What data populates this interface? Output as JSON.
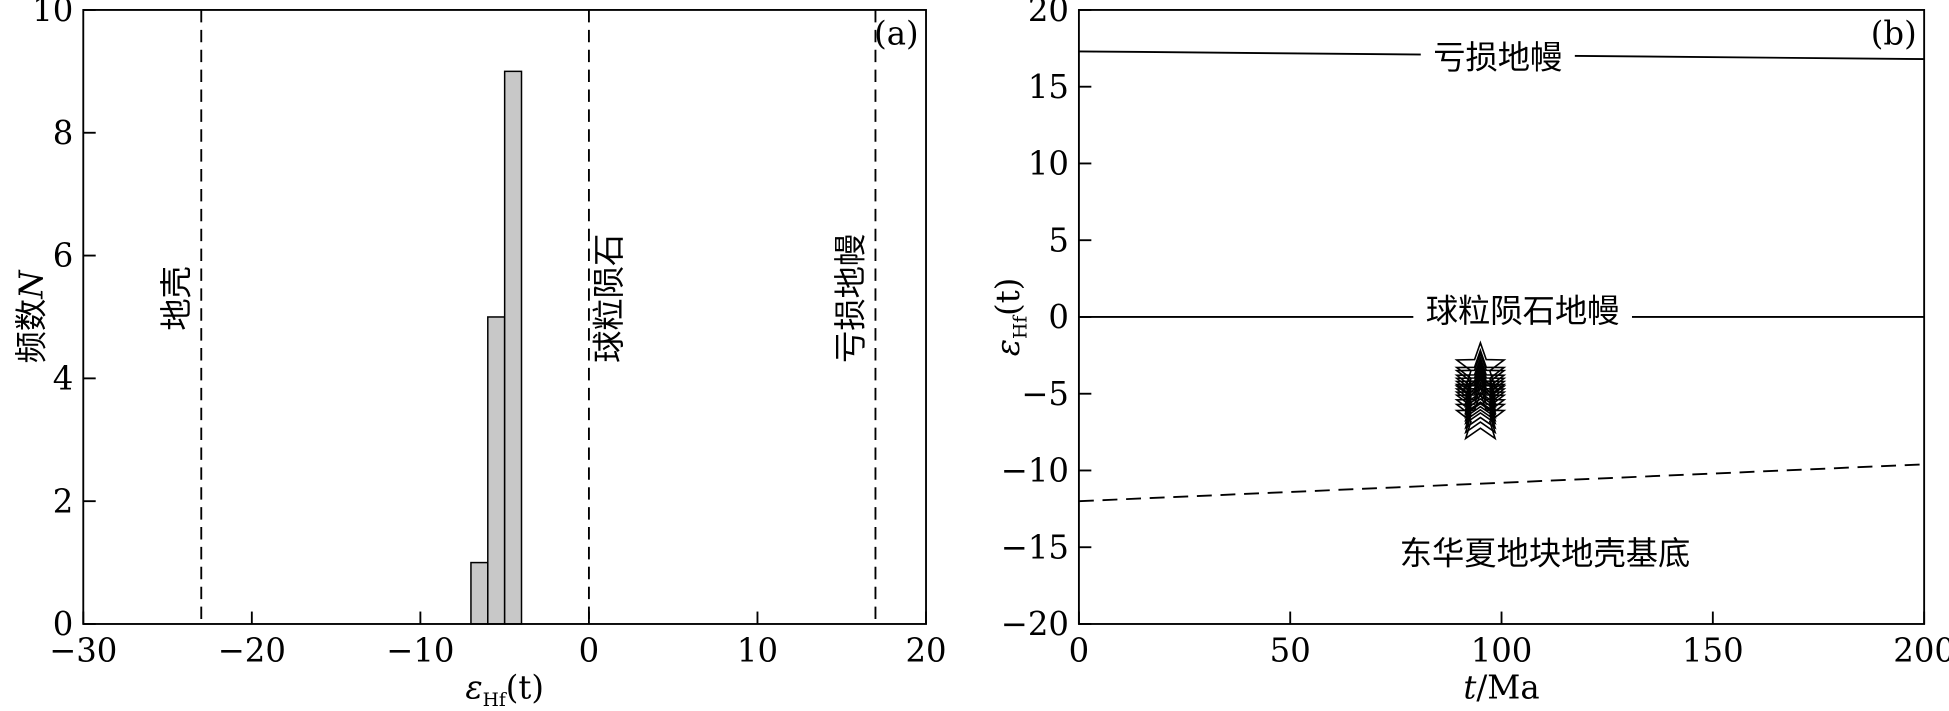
{
  "chart_data": [
    {
      "type": "histogram",
      "panel_label": "(a)",
      "xlabel": {
        "symbol": "ε",
        "subscript": "Hf",
        "arg": "(t)"
      },
      "ylabel": {
        "text": "频数",
        "var": "N"
      },
      "bins": [
        -7,
        -6,
        -5,
        -4
      ],
      "values": [
        1,
        5,
        9
      ],
      "color": "#c8c8c8",
      "xlim": [
        -30,
        20
      ],
      "xticks": [
        {
          "value": -30,
          "label": "−30"
        },
        {
          "value": -20,
          "label": "−20"
        },
        {
          "value": -10,
          "label": "−10"
        },
        0,
        10,
        20
      ],
      "ylim": [
        0,
        10
      ],
      "yticks": [
        0,
        2,
        4,
        6,
        8,
        10
      ],
      "vlines": [
        {
          "x": -23,
          "label": "地壳"
        },
        {
          "x": 0,
          "label": "球粒陨石"
        },
        {
          "x": 17,
          "label": "亏损地幔"
        }
      ]
    },
    {
      "type": "scatter",
      "panel_label": "(b)",
      "xlabel": {
        "var": "t",
        "unit": "/Ma"
      },
      "ylabel": {
        "symbol": "ε",
        "subscript": "Hf",
        "arg": "(t)"
      },
      "xlim": [
        0,
        200
      ],
      "xticks": [
        0,
        50,
        100,
        150,
        200
      ],
      "ylim": [
        -20,
        20
      ],
      "yticks": [
        {
          "value": -20,
          "label": "−20"
        },
        {
          "value": -15,
          "label": "−15"
        },
        {
          "value": -10,
          "label": "−10"
        },
        {
          "value": -5,
          "label": "−5"
        },
        0,
        5,
        10,
        15,
        20
      ],
      "lines": [
        {
          "name": "亏损地幔",
          "x": [
            0,
            200
          ],
          "values": [
            17.3,
            16.8
          ],
          "dashed": false
        },
        {
          "name": "球粒陨石地幔",
          "x": [
            0,
            200
          ],
          "values": [
            0,
            0
          ],
          "dashed": false
        },
        {
          "name": "东华夏地块地壳基底",
          "x": [
            0,
            200
          ],
          "values": [
            -12,
            -9.6
          ],
          "dashed": true
        }
      ],
      "points": {
        "marker": "star",
        "x": [
          95,
          95,
          95,
          95,
          95,
          95,
          95,
          95,
          95,
          95,
          95,
          95,
          95,
          95
        ],
        "y": [
          -3.3,
          -3.8,
          -4.0,
          -4.3,
          -4.5,
          -4.7,
          -4.9,
          -5.0,
          -5.2,
          -5.4,
          -5.6,
          -5.9,
          -6.2,
          -6.6
        ]
      }
    }
  ]
}
